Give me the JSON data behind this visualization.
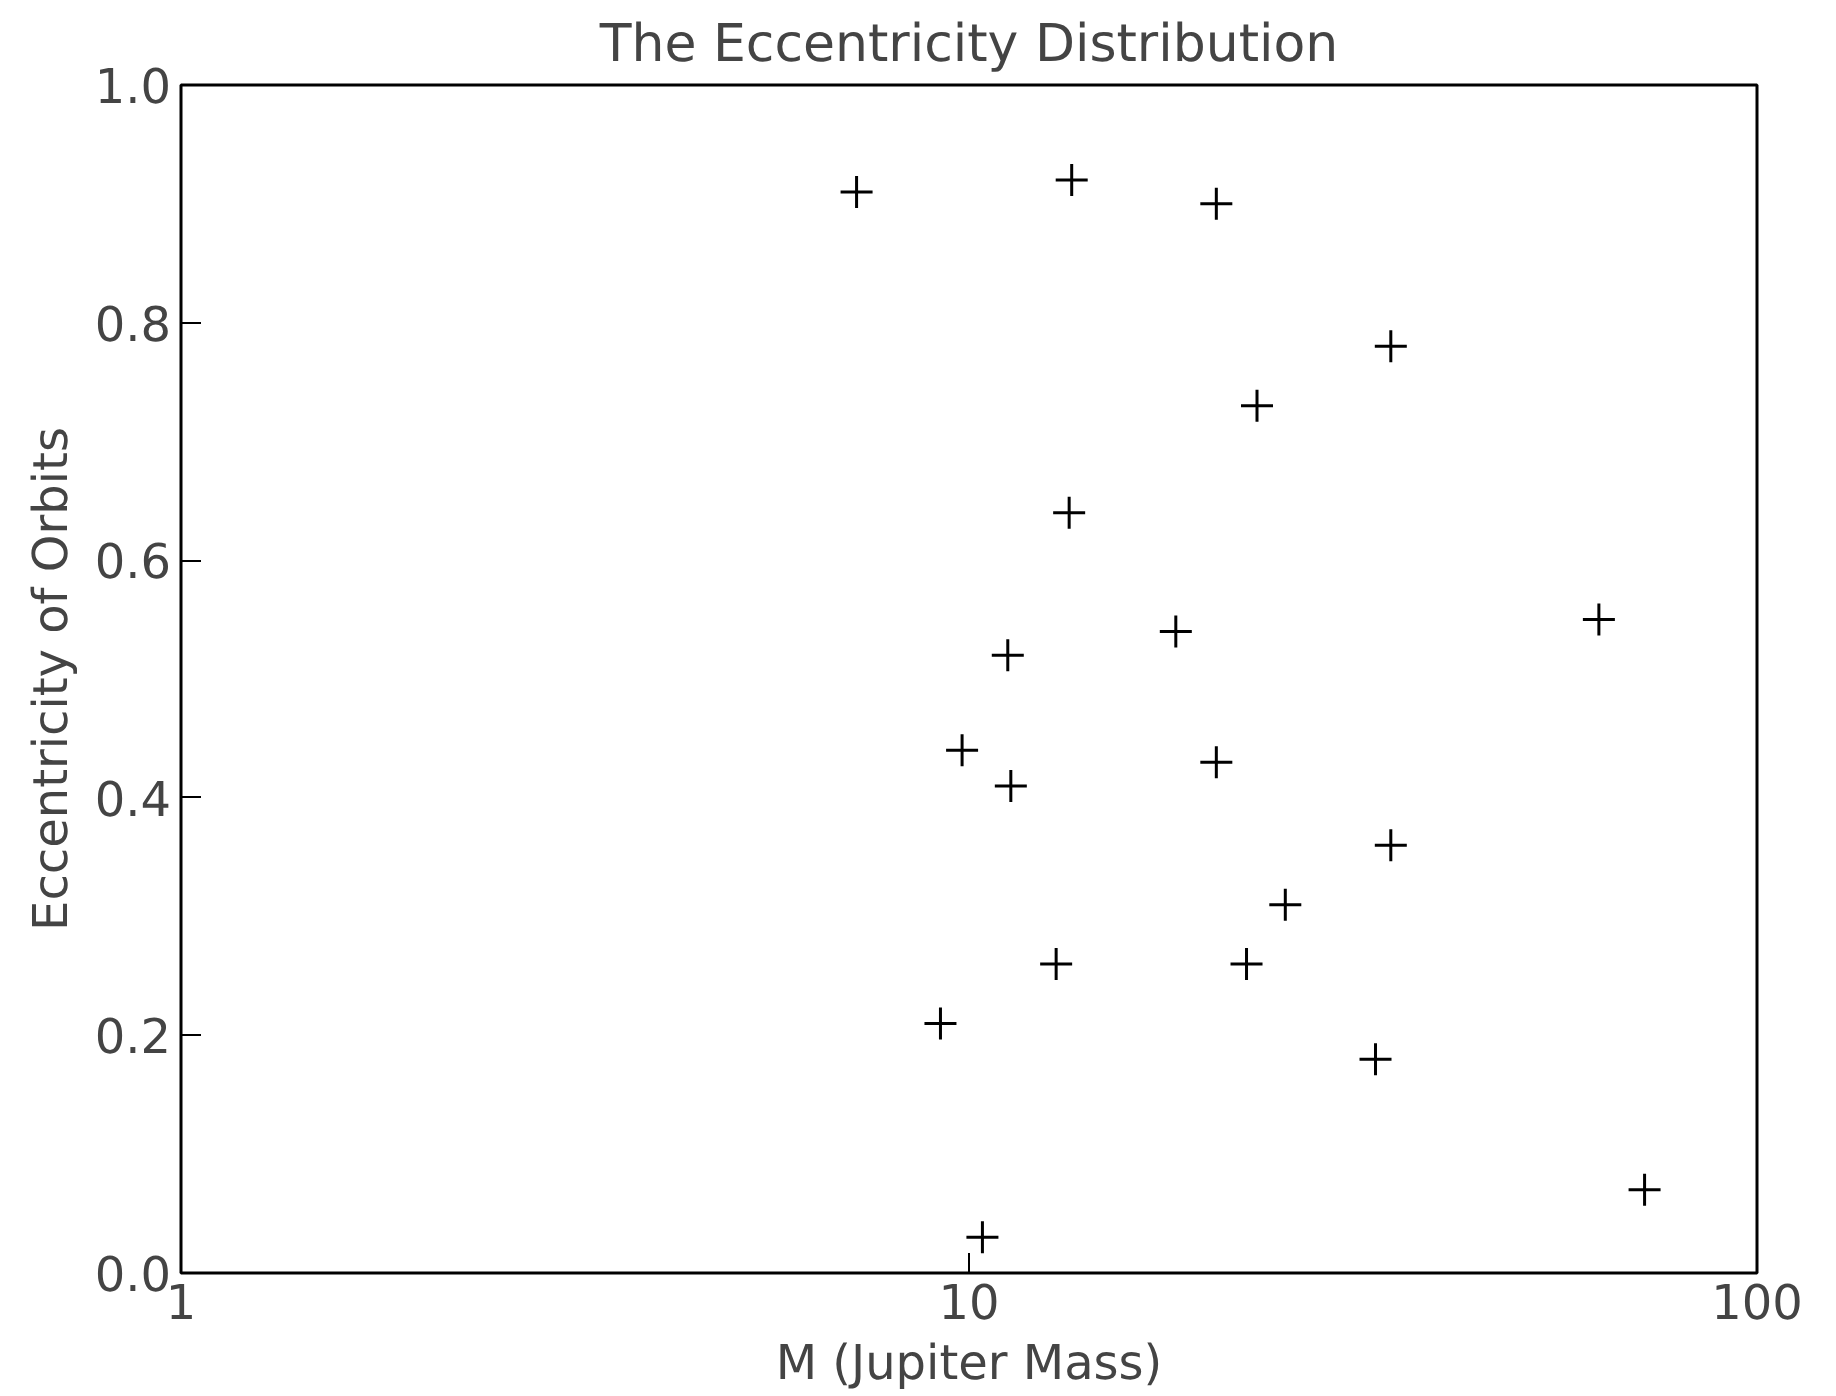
{
  "chart_data": {
    "type": "scatter",
    "title": "The Eccentricity Distribution",
    "xlabel": "M (Jupiter Mass)",
    "ylabel": "Eccentricity of Orbits",
    "x": [
      7.2,
      13.5,
      20.6,
      34.3,
      23.2,
      13.4,
      18.3,
      63,
      11.2,
      9.8,
      11.3,
      20.6,
      34.3,
      25.2,
      12.9,
      22.5,
      9.2,
      32.8,
      72,
      10.4
    ],
    "values": [
      0.91,
      0.92,
      0.9,
      0.78,
      0.73,
      0.64,
      0.54,
      0.55,
      0.52,
      0.44,
      0.41,
      0.43,
      0.36,
      0.31,
      0.26,
      0.26,
      0.21,
      0.18,
      0.07,
      0.03
    ],
    "color": "#000000",
    "marker": "cross",
    "log": "x",
    "grid": false,
    "xlim": [
      1,
      100
    ],
    "xticks": [
      1,
      10,
      100
    ],
    "ylim": [
      0,
      1
    ],
    "yticks": [
      {
        "value": 0,
        "label": "0.0"
      },
      0.2,
      0.4,
      0.6,
      0.8,
      {
        "value": 1,
        "label": "1.0"
      }
    ]
  }
}
